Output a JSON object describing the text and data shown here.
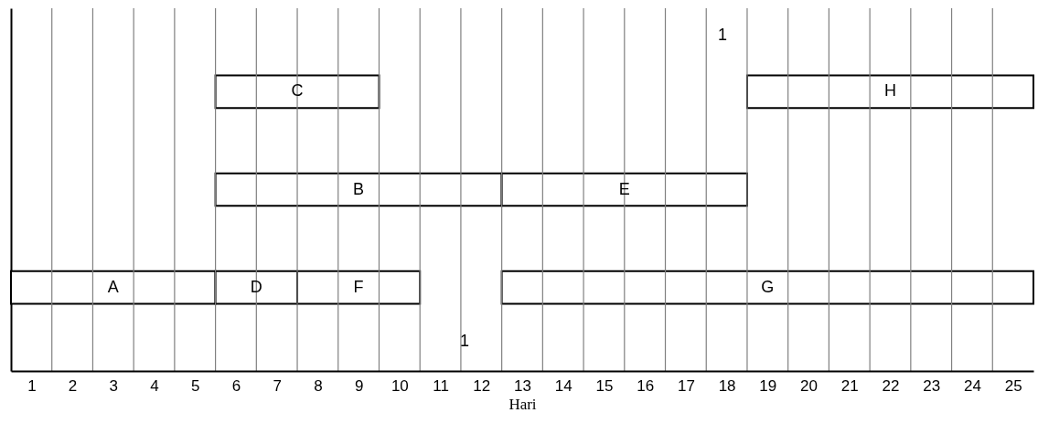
{
  "chart_data": {
    "type": "bar",
    "orientation": "horizontal",
    "xlabel": "Hari",
    "categories": [
      null,
      null,
      null
    ],
    "series": [
      {
        "name": "A",
        "color": "#ffffff",
        "values": [
          null,
          null,
          5
        ],
        "base": [
          null,
          null,
          0.5
        ]
      },
      {
        "name": "B",
        "color": "#ffffff",
        "values": [
          null,
          7,
          null
        ],
        "base": [
          null,
          5.5,
          null
        ]
      },
      {
        "name": "C",
        "color": "#ffffff",
        "values": [
          4,
          null,
          null
        ],
        "base": [
          5.5,
          null,
          null
        ]
      },
      {
        "name": "D",
        "color": "#ffffff",
        "values": [
          null,
          null,
          2
        ],
        "base": [
          null,
          null,
          5.5
        ]
      },
      {
        "name": "E",
        "color": "#ffffff",
        "values": [
          null,
          6,
          null
        ],
        "base": [
          null,
          12.5,
          null
        ]
      },
      {
        "name": "F",
        "color": "#ffffff",
        "values": [
          null,
          null,
          3
        ],
        "base": [
          null,
          null,
          7.5
        ]
      },
      {
        "name": "G",
        "color": "#ffffff",
        "values": [
          null,
          null,
          13
        ],
        "base": [
          null,
          null,
          12.5
        ]
      },
      {
        "name": "H",
        "color": "#ffffff",
        "values": [
          7,
          null,
          null
        ],
        "base": [
          18.5,
          null,
          null
        ]
      }
    ],
    "xlim": [
      0.5,
      25.5
    ],
    "xticks": [
      1,
      2,
      3,
      4,
      5,
      6,
      7,
      8,
      9,
      10,
      11,
      12,
      13,
      14,
      15,
      16,
      17,
      18,
      19,
      20,
      21,
      22,
      23,
      24,
      25,
      {
        "value": 1.5,
        "label": null
      },
      {
        "value": 2.5,
        "label": null
      },
      {
        "value": 3.5,
        "label": null
      },
      {
        "value": 4.5,
        "label": null
      },
      {
        "value": 5.5,
        "label": null
      },
      {
        "value": 6.5,
        "label": null
      },
      {
        "value": 7.5,
        "label": null
      },
      {
        "value": 8.5,
        "label": null
      },
      {
        "value": 9.5,
        "label": null
      },
      {
        "value": 10.5,
        "label": null
      },
      {
        "value": 11.5,
        "label": null
      },
      {
        "value": 12.5,
        "label": null
      },
      {
        "value": 13.5,
        "label": null
      },
      {
        "value": 14.5,
        "label": null
      },
      {
        "value": 15.5,
        "label": null
      },
      {
        "value": 16.5,
        "label": null
      },
      {
        "value": 17.5,
        "label": null
      },
      {
        "value": 18.5,
        "label": null
      },
      {
        "value": 19.5,
        "label": null
      },
      {
        "value": 20.5,
        "label": null
      },
      {
        "value": 21.5,
        "label": null
      },
      {
        "value": 22.5,
        "label": null
      },
      {
        "value": 23.5,
        "label": null
      },
      {
        "value": 24.5,
        "label": null
      }
    ],
    "grid": "x",
    "annotations": [
      "1",
      "1"
    ]
  }
}
